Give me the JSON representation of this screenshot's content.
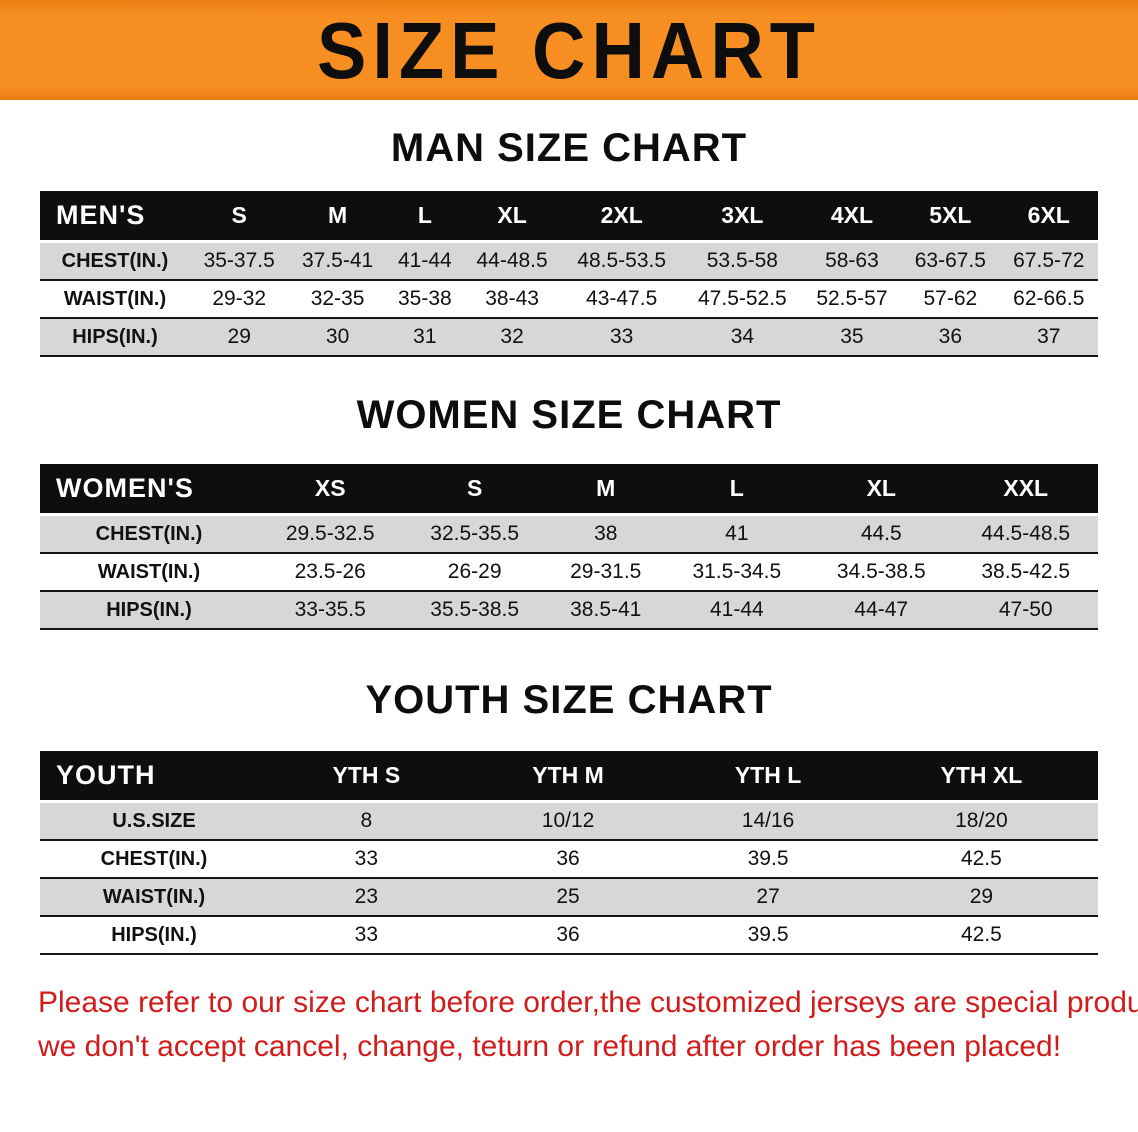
{
  "banner": {
    "title": "SIZE CHART"
  },
  "colors": {
    "banner_bg": "#F78E22",
    "table_header_bg": "#0E0E0E",
    "row_stripe": "#D7D7D7",
    "disclaimer_text": "#D21C1C"
  },
  "sections": {
    "men": {
      "heading": "MAN SIZE CHART",
      "table": {
        "header": [
          "MEN'S",
          "S",
          "M",
          "L",
          "XL",
          "2XL",
          "3XL",
          "4XL",
          "5XL",
          "6XL"
        ],
        "rows": [
          [
            "CHEST(IN.)",
            "35-37.5",
            "37.5-41",
            "41-44",
            "44-48.5",
            "48.5-53.5",
            "53.5-58",
            "58-63",
            "63-67.5",
            "67.5-72"
          ],
          [
            "WAIST(IN.)",
            "29-32",
            "32-35",
            "35-38",
            "38-43",
            "43-47.5",
            "47.5-52.5",
            "52.5-57",
            "57-62",
            "62-66.5"
          ],
          [
            "HIPS(IN.)",
            "29",
            "30",
            "31",
            "32",
            "33",
            "34",
            "35",
            "36",
            "37"
          ]
        ]
      }
    },
    "women": {
      "heading": "WOMEN SIZE CHART",
      "table": {
        "header": [
          "WOMEN'S",
          "XS",
          "S",
          "M",
          "L",
          "XL",
          "XXL"
        ],
        "rows": [
          [
            "CHEST(IN.)",
            "29.5-32.5",
            "32.5-35.5",
            "38",
            "41",
            "44.5",
            "44.5-48.5"
          ],
          [
            "WAIST(IN.)",
            "23.5-26",
            "26-29",
            "29-31.5",
            "31.5-34.5",
            "34.5-38.5",
            "38.5-42.5"
          ],
          [
            "HIPS(IN.)",
            "33-35.5",
            "35.5-38.5",
            "38.5-41",
            "41-44",
            "44-47",
            "47-50"
          ]
        ]
      }
    },
    "youth": {
      "heading": "YOUTH SIZE CHART",
      "table": {
        "header": [
          "YOUTH",
          "YTH S",
          "YTH M",
          "YTH L",
          "YTH XL"
        ],
        "rows": [
          [
            "U.S.SIZE",
            "8",
            "10/12",
            "14/16",
            "18/20"
          ],
          [
            "CHEST(IN.)",
            "33",
            "36",
            "39.5",
            "42.5"
          ],
          [
            "WAIST(IN.)",
            "23",
            "25",
            "27",
            "29"
          ],
          [
            "HIPS(IN.)",
            "33",
            "36",
            "39.5",
            "42.5"
          ]
        ]
      }
    }
  },
  "disclaimer": {
    "line1": "Please refer to our size chart before order,the customized jerseys are special products,",
    "line2": "we don't accept cancel, change, teturn or refund after order has been placed!"
  }
}
